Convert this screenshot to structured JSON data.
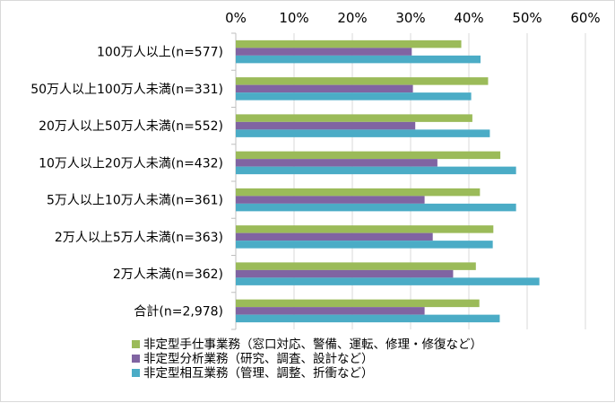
{
  "chart_data": {
    "type": "bar",
    "orientation": "horizontal",
    "categories": [
      "100万人以上(n=577)",
      "50万人以上100万人未満(n=331)",
      "20万人以上50万人未満(n=552)",
      "10万人以上20万人未満(n=432)",
      "5万人以上10万人未満(n=361)",
      "2万人以上5万人未満(n=363)",
      "2万人未満(n=362)",
      "合計(n=2,978)"
    ],
    "series": [
      {
        "name": "非定型手仕事業務（窓口対応、警備、運転、修理・修復など）",
        "color": "#9bbb59",
        "values": [
          38.7,
          43.3,
          40.6,
          45.4,
          41.9,
          44.2,
          41.2,
          41.8
        ]
      },
      {
        "name": "非定型分析業務（研究、調査、設計など）",
        "color": "#8064a2",
        "values": [
          30.2,
          30.4,
          30.8,
          34.6,
          32.4,
          33.8,
          37.3,
          32.4
        ]
      },
      {
        "name": "非定型相互業務（管理、調整、折衝など）",
        "color": "#4bacc6",
        "values": [
          42.0,
          40.4,
          43.6,
          48.1,
          48.1,
          44.1,
          52.1,
          45.3
        ]
      }
    ],
    "xlim": [
      0,
      60
    ],
    "ticks": [
      "0%",
      "10%",
      "20%",
      "30%",
      "40%",
      "50%",
      "60%"
    ],
    "tick_values": [
      0,
      10,
      20,
      30,
      40,
      50,
      60
    ],
    "grid": true,
    "axis_position": "top",
    "legend_position": "bottom"
  },
  "colors": {
    "grid": "#d9d9d9",
    "axis": "#000000"
  }
}
